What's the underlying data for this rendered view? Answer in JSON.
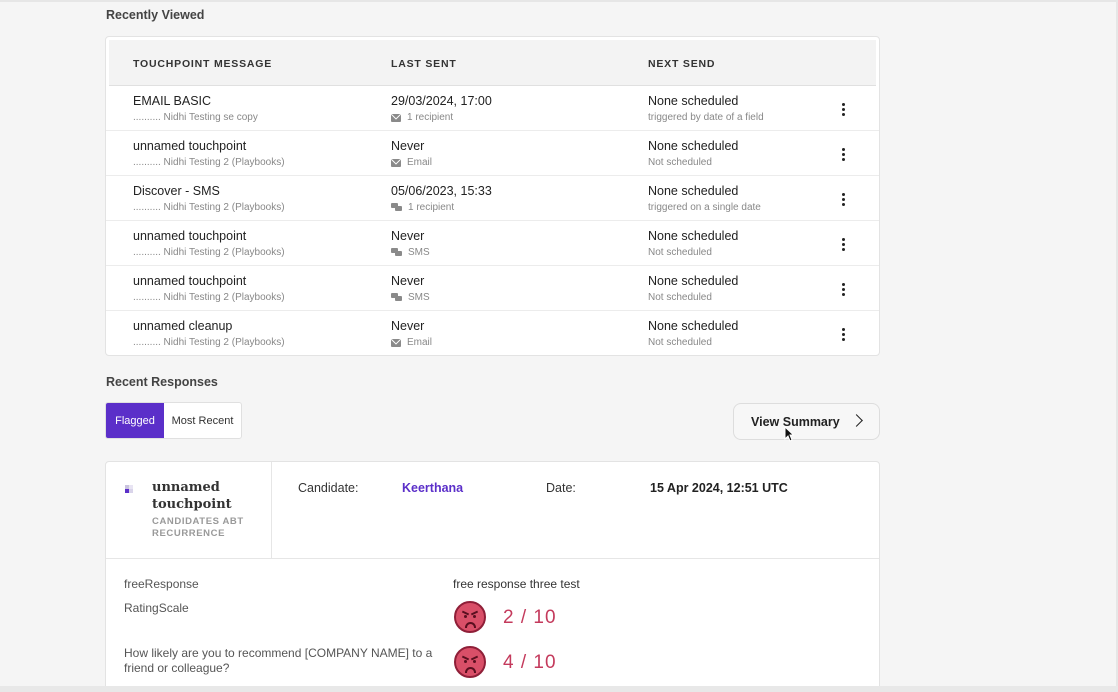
{
  "recently_viewed": {
    "title": "Recently Viewed",
    "columns": [
      "TOUCHPOINT MESSAGE",
      "LAST SENT",
      "NEXT SEND"
    ],
    "rows": [
      {
        "name": "EMAIL BASIC",
        "playbook": ".......... Nidhi Testing se copy",
        "last_sent": "29/03/2024, 17:00",
        "channel_icon": "envelope-icon",
        "channel_label": "1 recipient",
        "next_send": "None scheduled",
        "next_detail": "triggered by date of a field"
      },
      {
        "name": "unnamed touchpoint",
        "playbook": ".......... Nidhi Testing 2 (Playbooks)",
        "last_sent": "Never",
        "channel_icon": "envelope-icon",
        "channel_label": "Email",
        "next_send": "None scheduled",
        "next_detail": "Not scheduled"
      },
      {
        "name": "Discover - SMS",
        "playbook": ".......... Nidhi Testing 2 (Playbooks)",
        "last_sent": "05/06/2023, 15:33",
        "channel_icon": "chat-icon",
        "channel_label": "1 recipient",
        "next_send": "None scheduled",
        "next_detail": "triggered on a single date"
      },
      {
        "name": "unnamed touchpoint",
        "playbook": ".......... Nidhi Testing 2 (Playbooks)",
        "last_sent": "Never",
        "channel_icon": "chat-icon",
        "channel_label": "SMS",
        "next_send": "None scheduled",
        "next_detail": "Not scheduled"
      },
      {
        "name": "unnamed touchpoint",
        "playbook": ".......... Nidhi Testing 2 (Playbooks)",
        "last_sent": "Never",
        "channel_icon": "chat-icon",
        "channel_label": "SMS",
        "next_send": "None scheduled",
        "next_detail": "Not scheduled"
      },
      {
        "name": "unnamed cleanup",
        "playbook": ".......... Nidhi Testing 2 (Playbooks)",
        "last_sent": "Never",
        "channel_icon": "envelope-icon",
        "channel_label": "Email",
        "next_send": "None scheduled",
        "next_detail": "Not scheduled"
      }
    ]
  },
  "recent_responses": {
    "title": "Recent Responses",
    "tabs": {
      "flagged": "Flagged",
      "most_recent": "Most Recent"
    },
    "view_summary": "View Summary",
    "card": {
      "touchpoint_title": "unnamed touchpoint",
      "touchpoint_subtitle": "CANDIDATES ABT RECURRENCE",
      "candidate_label": "Candidate:",
      "candidate_value": "Keerthana",
      "date_label": "Date:",
      "date_value": "15 Apr 2024, 12:51 UTC",
      "answers": [
        {
          "question": "freeResponse",
          "answer": "free response three test"
        },
        {
          "question": "RatingScale",
          "score": "2 / 10"
        },
        {
          "question": "How likely are you to recommend [COMPANY NAME] to a friend or colleague?",
          "score": "4 / 10"
        }
      ]
    }
  },
  "colors": {
    "accent": "#5b2fc9",
    "score": "#c43a5c"
  }
}
